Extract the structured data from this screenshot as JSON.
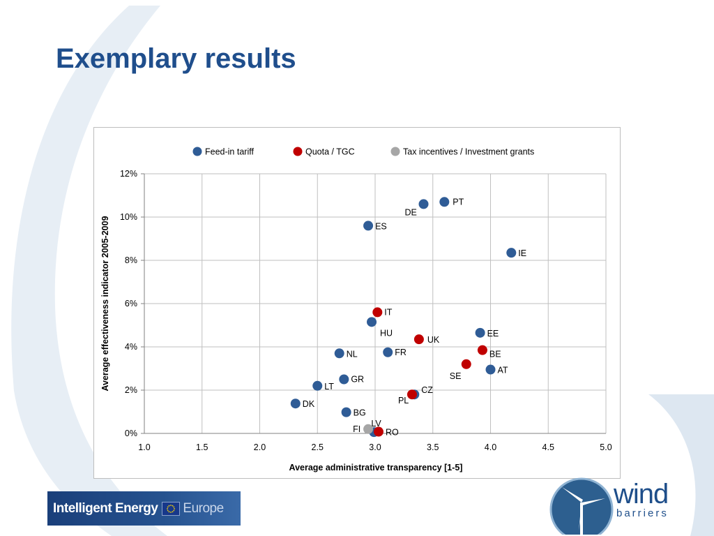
{
  "slide": {
    "title": "Exemplary results"
  },
  "colors": {
    "title": "#1f4e8c",
    "feed_in": "#2f5c96",
    "quota": "#c00000",
    "tax": "#a6a6a6",
    "grid": "#bfbfbf"
  },
  "chart_data": {
    "type": "scatter",
    "xlabel": "Average administrative transparency  [1-5]",
    "ylabel": "Average effectiveness  indicator 2005-2009",
    "xlim": [
      1.0,
      5.0
    ],
    "ylim": [
      0,
      12
    ],
    "x_ticks": [
      "1.0",
      "1.5",
      "2.0",
      "2.5",
      "3.0",
      "3.5",
      "4.0",
      "4.5",
      "5.0"
    ],
    "y_ticks": [
      "0%",
      "2%",
      "4%",
      "6%",
      "8%",
      "10%",
      "12%"
    ],
    "grid": true,
    "legend_position": "top",
    "series": [
      {
        "name": "Feed-in tariff",
        "color": "#2f5c96",
        "points": [
          {
            "label": "PT",
            "x": 3.6,
            "y": 10.7
          },
          {
            "label": "DE",
            "x": 3.42,
            "y": 10.6
          },
          {
            "label": "ES",
            "x": 2.94,
            "y": 9.6
          },
          {
            "label": "IE",
            "x": 4.18,
            "y": 8.35
          },
          {
            "label": "HU",
            "x": 2.97,
            "y": 5.15
          },
          {
            "label": "EE",
            "x": 3.91,
            "y": 4.65
          },
          {
            "label": "NL",
            "x": 2.69,
            "y": 3.7
          },
          {
            "label": "FR",
            "x": 3.11,
            "y": 3.75
          },
          {
            "label": "AT",
            "x": 4.0,
            "y": 2.95
          },
          {
            "label": "GR",
            "x": 2.73,
            "y": 2.5
          },
          {
            "label": "LT",
            "x": 2.5,
            "y": 2.2
          },
          {
            "label": "CZ",
            "x": 3.34,
            "y": 1.8
          },
          {
            "label": "DK",
            "x": 2.31,
            "y": 1.38
          },
          {
            "label": "BG",
            "x": 2.75,
            "y": 0.98
          },
          {
            "label": "LV",
            "x": 2.99,
            "y": 0.06
          }
        ]
      },
      {
        "name": "Quota / TGC",
        "color": "#c00000",
        "points": [
          {
            "label": "IT",
            "x": 3.02,
            "y": 5.6
          },
          {
            "label": "UK",
            "x": 3.38,
            "y": 4.35
          },
          {
            "label": "BE",
            "x": 3.93,
            "y": 3.85
          },
          {
            "label": "SE",
            "x": 3.79,
            "y": 3.2
          },
          {
            "label": "PL",
            "x": 3.32,
            "y": 1.8
          },
          {
            "label": "RO",
            "x": 3.03,
            "y": 0.08
          }
        ]
      },
      {
        "name": "Tax incentives / Investment grants",
        "color": "#a6a6a6",
        "points": [
          {
            "label": "FI",
            "x": 2.94,
            "y": 0.2
          }
        ]
      }
    ]
  },
  "logos": {
    "ie_part1": "Intelligent Energy",
    "ie_part2": "Europe",
    "wb_part1": "wind",
    "wb_part2": "barriers"
  }
}
